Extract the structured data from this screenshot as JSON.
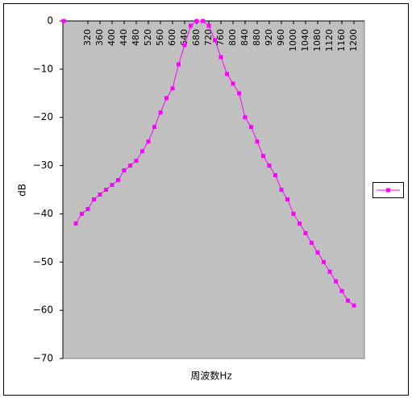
{
  "chart_data": {
    "type": "line",
    "x_label": "周波数Hz",
    "y_label": "dB",
    "categories": [
      null,
      null,
      null,
      null,
      "320",
      null,
      "360",
      null,
      "400",
      null,
      "440",
      null,
      "480",
      null,
      "520",
      null,
      "560",
      null,
      "600",
      null,
      "640",
      null,
      "680",
      null,
      "720",
      null,
      "760",
      null,
      "800",
      null,
      "840",
      null,
      "880",
      null,
      "920",
      null,
      "960",
      null,
      "1000",
      null,
      "1040",
      null,
      "1080",
      null,
      "1120",
      null,
      "1160",
      null,
      "1200"
    ],
    "series": [
      {
        "color": "#ff00ff",
        "values": [
          0,
          null,
          -42,
          -40,
          -39,
          -37,
          -36,
          -35,
          -34,
          -33,
          -31,
          -30,
          -29,
          -27,
          -25,
          -22,
          -19,
          -16,
          -14,
          -9,
          -5,
          -1,
          0,
          0,
          -1,
          -4,
          -7.5,
          -11,
          -13,
          -15,
          -20,
          -22,
          -25,
          -28,
          -30,
          -32,
          -35,
          -37,
          -40,
          -42,
          -44,
          -46,
          -48,
          -50,
          -52,
          -54,
          -56,
          -58,
          -59
        ]
      }
    ],
    "ylim": [
      -70,
      0
    ],
    "yticks": [
      {
        "value": -70,
        "label": "−70"
      },
      {
        "value": -60,
        "label": "−60"
      },
      {
        "value": -50,
        "label": "−50"
      },
      {
        "value": -40,
        "label": "−40"
      },
      {
        "value": -30,
        "label": "−30"
      },
      {
        "value": -20,
        "label": "−20"
      },
      {
        "value": -10,
        "label": "−10"
      },
      0
    ],
    "plot_background": "#c0c0c0",
    "legend": "right"
  }
}
